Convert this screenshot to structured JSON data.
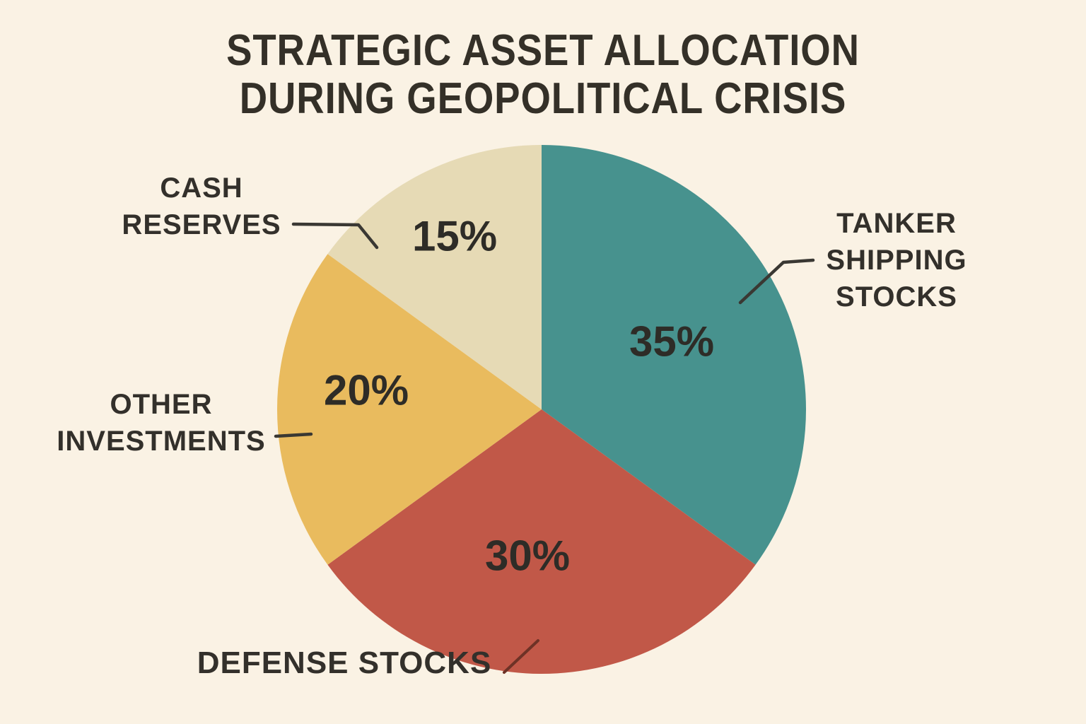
{
  "title": {
    "line1": "STRATEGIC ASSET ALLOCATION",
    "line2": "DURING GEOPOLITICAL CRISIS"
  },
  "chart_data": {
    "type": "pie",
    "title": "Strategic Asset Allocation During Geopolitical Crisis",
    "start_angle_deg": 0,
    "direction": "clockwise",
    "legend_position": "none",
    "labels_style": "category callouts outside with leader lines; percent values inside slices",
    "slices": [
      {
        "label": "TANKER SHIPPING STOCKS",
        "label_lines": [
          "TANKER",
          "SHIPPING",
          "STOCKS"
        ],
        "value": 35,
        "pct_label": "35%",
        "color": "#47928e"
      },
      {
        "label": "DEFENSE STOCKS",
        "label_lines": [
          "DEFENSE STOCKS"
        ],
        "value": 30,
        "pct_label": "30%",
        "color": "#c15848"
      },
      {
        "label": "OTHER INVESTMENTS",
        "label_lines": [
          "OTHER",
          "INVESTMENTS"
        ],
        "value": 20,
        "pct_label": "20%",
        "color": "#e9bb5e"
      },
      {
        "label": "CASH RESERVES",
        "label_lines": [
          "CASH",
          "RESERVES"
        ],
        "value": 15,
        "pct_label": "15%",
        "color": "#e6dab5"
      }
    ]
  },
  "colors": {
    "background": "#faf2e4",
    "text": "#33302a",
    "leader_line": "#3a3833",
    "leader_line_on_red": "#6e3226"
  }
}
